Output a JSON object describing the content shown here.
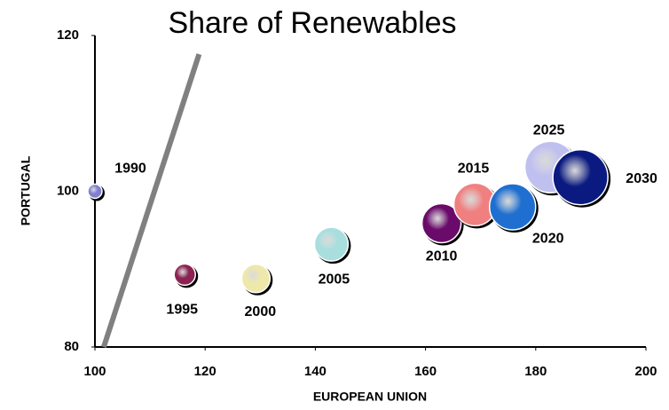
{
  "chart_data": {
    "type": "bubble",
    "title": "Share of Renewables",
    "x_label": "EUROPEAN UNION",
    "y_label": "PORTUGAL",
    "labels": [
      "1990",
      "1995",
      "2000",
      "2005",
      "2010",
      "2015",
      "2020",
      "2025",
      "2030"
    ],
    "x": [
      100,
      116.3,
      129.2,
      142.9,
      162.9,
      169.0,
      175.8,
      182.7,
      188.1
    ],
    "y": [
      100,
      89.3,
      88.8,
      93.2,
      95.9,
      98.3,
      98.0,
      103.1,
      101.8
    ],
    "sizes": [
      8,
      12,
      16,
      19,
      22,
      24,
      26,
      29,
      31
    ],
    "colors": [
      "#8080d0",
      "#8b2252",
      "#eee8aa",
      "#a8dede",
      "#6a0a6a",
      "#f08080",
      "#1e6fd0",
      "#c0c0f0",
      "#0a1a80"
    ],
    "reference_line": {
      "x": [
        101.6,
        118.9
      ],
      "y": [
        80,
        117.6
      ],
      "color": "#808080"
    },
    "xlim": [
      100,
      200
    ],
    "xticks": [
      100,
      120,
      140,
      160,
      180,
      200
    ],
    "ylim": [
      80,
      120
    ],
    "yticks": [
      80,
      100,
      120
    ]
  }
}
